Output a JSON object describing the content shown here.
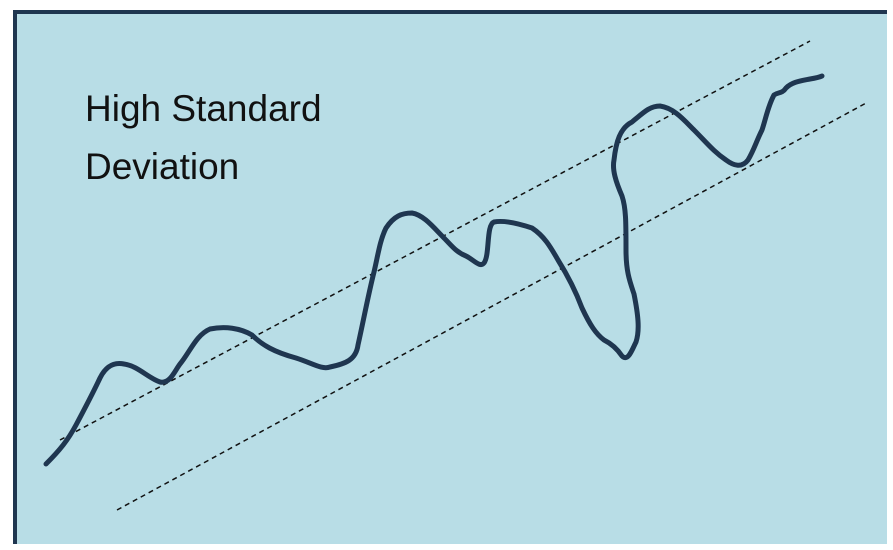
{
  "title": {
    "line1": "High Standard",
    "line2": "Deviation"
  },
  "colors": {
    "background": "#b8dde6",
    "border": "#1f3650",
    "price_line": "#1f3650",
    "band_lines": "#111111",
    "text": "#111111"
  }
}
